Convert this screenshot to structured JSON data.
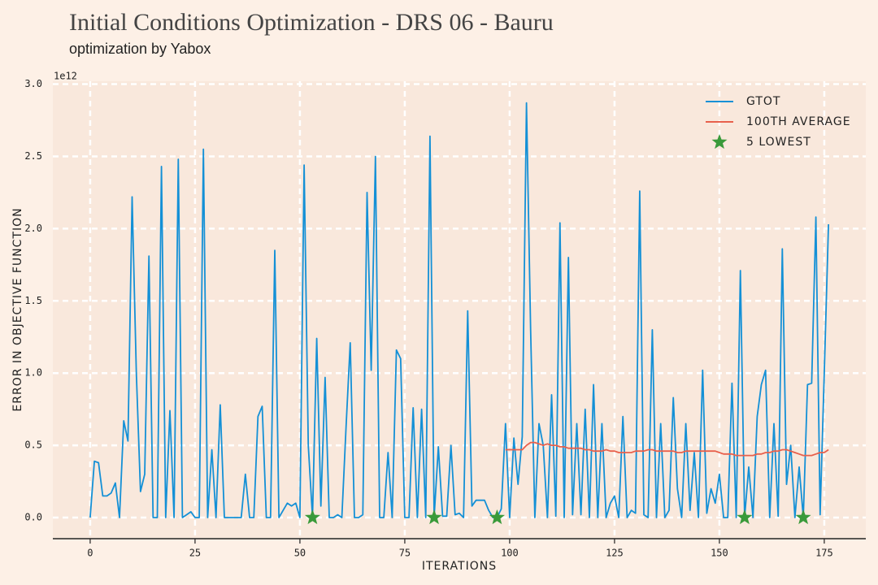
{
  "chart_data": {
    "type": "line",
    "title": "Initial Conditions Optimization - DRS 06 - Bauru",
    "subtitle": "optimization by Yabox",
    "x_label": "ITERATIONS",
    "y_label": "ERROR IN OBJECTIVE FUNCTION",
    "y_offset_label": "1e12",
    "xlim": [
      -8.9,
      184.9
    ],
    "ylim": [
      -0.146,
      3.02
    ],
    "xticks": [
      0,
      25,
      50,
      75,
      100,
      125,
      150,
      175
    ],
    "yticks": [
      {
        "value": 0,
        "label": "0.0"
      },
      {
        "value": 0.5,
        "label": "0.5"
      },
      {
        "value": 1,
        "label": "1.0"
      },
      {
        "value": 1.5,
        "label": "1.5"
      },
      {
        "value": 2,
        "label": "2.0"
      },
      {
        "value": 2.5,
        "label": "2.5"
      },
      {
        "value": 3,
        "label": "3.0"
      }
    ],
    "grid": true,
    "legend": "upper right",
    "series": [
      {
        "name": "GTOT",
        "color": "#1490d6",
        "type": "line",
        "x": [
          0,
          1,
          2,
          3,
          4,
          5,
          6,
          7,
          8,
          9,
          10,
          11,
          12,
          13,
          14,
          15,
          16,
          17,
          18,
          19,
          20,
          21,
          22,
          23,
          24,
          25,
          26,
          27,
          28,
          29,
          30,
          31,
          32,
          33,
          34,
          35,
          36,
          37,
          38,
          39,
          40,
          41,
          42,
          43,
          44,
          45,
          46,
          47,
          48,
          49,
          50,
          51,
          52,
          53,
          54,
          55,
          56,
          57,
          58,
          59,
          60,
          61,
          62,
          63,
          64,
          65,
          66,
          67,
          68,
          69,
          70,
          71,
          72,
          73,
          74,
          75,
          76,
          77,
          78,
          79,
          80,
          81,
          82,
          83,
          84,
          85,
          86,
          87,
          88,
          89,
          90,
          91,
          92,
          93,
          94,
          95,
          96,
          97,
          98,
          99,
          100,
          101,
          102,
          103,
          104,
          105,
          106,
          107,
          108,
          109,
          110,
          111,
          112,
          113,
          114,
          115,
          116,
          117,
          118,
          119,
          120,
          121,
          122,
          123,
          124,
          125,
          126,
          127,
          128,
          129,
          130,
          131,
          132,
          133,
          134,
          135,
          136,
          137,
          138,
          139,
          140,
          141,
          142,
          143,
          144,
          145,
          146,
          147,
          148,
          149,
          150,
          151,
          152,
          153,
          154,
          155,
          156,
          157,
          158,
          159,
          160,
          161,
          162,
          163,
          164,
          165,
          166,
          167,
          168,
          169,
          170,
          171,
          172,
          173,
          174,
          175,
          176
        ],
        "values": [
          0.0,
          0.39,
          0.38,
          0.15,
          0.15,
          0.17,
          0.24,
          0.0,
          0.67,
          0.53,
          2.22,
          1.0,
          0.18,
          0.3,
          1.81,
          0.0,
          0.0,
          2.43,
          0.0,
          0.74,
          0.0,
          2.48,
          0.0,
          0.02,
          0.04,
          0.0,
          0.0,
          2.55,
          0.0,
          0.47,
          0.0,
          0.78,
          0.0,
          0.0,
          0.0,
          0.0,
          0.0,
          0.3,
          0.0,
          0.0,
          0.7,
          0.77,
          0.0,
          0.0,
          1.85,
          0.0,
          0.05,
          0.1,
          0.08,
          0.1,
          0.0,
          2.44,
          0.5,
          0.0,
          1.24,
          0.08,
          0.97,
          0.0,
          0.0,
          0.02,
          0.0,
          0.63,
          1.21,
          0.0,
          0.0,
          0.02,
          2.25,
          1.02,
          2.5,
          0.0,
          0.0,
          0.45,
          0.0,
          1.16,
          1.1,
          0.0,
          0.0,
          0.76,
          0.0,
          0.75,
          0.0,
          2.64,
          0.0,
          0.49,
          0.01,
          0.01,
          0.5,
          0.02,
          0.03,
          0.0,
          1.43,
          0.08,
          0.12,
          0.12,
          0.12,
          0.05,
          0.0,
          0.0,
          0.06,
          0.65,
          0.0,
          0.55,
          0.23,
          0.56,
          2.87,
          1.3,
          0.0,
          0.65,
          0.5,
          0.0,
          0.85,
          0.01,
          2.04,
          0.0,
          1.8,
          0.02,
          0.65,
          0.02,
          0.75,
          0.0,
          0.92,
          0.0,
          0.65,
          0.0,
          0.1,
          0.15,
          0.0,
          0.7,
          0.0,
          0.05,
          0.03,
          2.26,
          0.02,
          0.0,
          1.3,
          0.0,
          0.65,
          0.0,
          0.05,
          0.83,
          0.2,
          0.0,
          0.65,
          0.05,
          0.45,
          0.0,
          1.02,
          0.03,
          0.2,
          0.1,
          0.3,
          0.0,
          0.0,
          0.93,
          0.0,
          1.71,
          0.0,
          0.35,
          0.0,
          0.7,
          0.92,
          1.02,
          0.0,
          0.65,
          0.01,
          1.86,
          0.23,
          0.5,
          0.0,
          0.35,
          0.0,
          0.92,
          0.93,
          2.08,
          0.02,
          1.0,
          2.03
        ]
      },
      {
        "name": "100TH AVERAGE",
        "color": "#e8604c",
        "type": "line",
        "x": [
          99,
          100,
          101,
          102,
          103,
          104,
          105,
          106,
          107,
          108,
          109,
          110,
          111,
          112,
          113,
          114,
          115,
          116,
          117,
          118,
          119,
          120,
          121,
          122,
          123,
          124,
          125,
          126,
          127,
          128,
          129,
          130,
          131,
          132,
          133,
          134,
          135,
          136,
          137,
          138,
          139,
          140,
          141,
          142,
          143,
          144,
          145,
          146,
          147,
          148,
          149,
          150,
          151,
          152,
          153,
          154,
          155,
          156,
          157,
          158,
          159,
          160,
          161,
          162,
          163,
          164,
          165,
          166,
          167,
          168,
          169,
          170,
          171,
          172,
          173,
          174,
          175,
          176
        ],
        "values": [
          0.47,
          0.47,
          0.47,
          0.47,
          0.47,
          0.5,
          0.52,
          0.52,
          0.51,
          0.5,
          0.51,
          0.5,
          0.5,
          0.49,
          0.49,
          0.48,
          0.48,
          0.48,
          0.48,
          0.47,
          0.47,
          0.46,
          0.46,
          0.46,
          0.47,
          0.46,
          0.46,
          0.45,
          0.45,
          0.45,
          0.45,
          0.46,
          0.46,
          0.46,
          0.47,
          0.47,
          0.46,
          0.46,
          0.46,
          0.46,
          0.46,
          0.45,
          0.45,
          0.46,
          0.46,
          0.46,
          0.46,
          0.46,
          0.46,
          0.46,
          0.46,
          0.45,
          0.44,
          0.44,
          0.44,
          0.43,
          0.43,
          0.43,
          0.43,
          0.43,
          0.44,
          0.44,
          0.45,
          0.45,
          0.46,
          0.46,
          0.47,
          0.47,
          0.46,
          0.45,
          0.44,
          0.43,
          0.43,
          0.43,
          0.44,
          0.45,
          0.45,
          0.47
        ]
      },
      {
        "name": "5 LOWEST",
        "color": "#3a9a3a",
        "type": "scatter",
        "x": [
          53,
          82,
          97,
          156,
          170
        ],
        "values": [
          0.0,
          0.0,
          0.0,
          0.0,
          0.0
        ]
      }
    ]
  }
}
